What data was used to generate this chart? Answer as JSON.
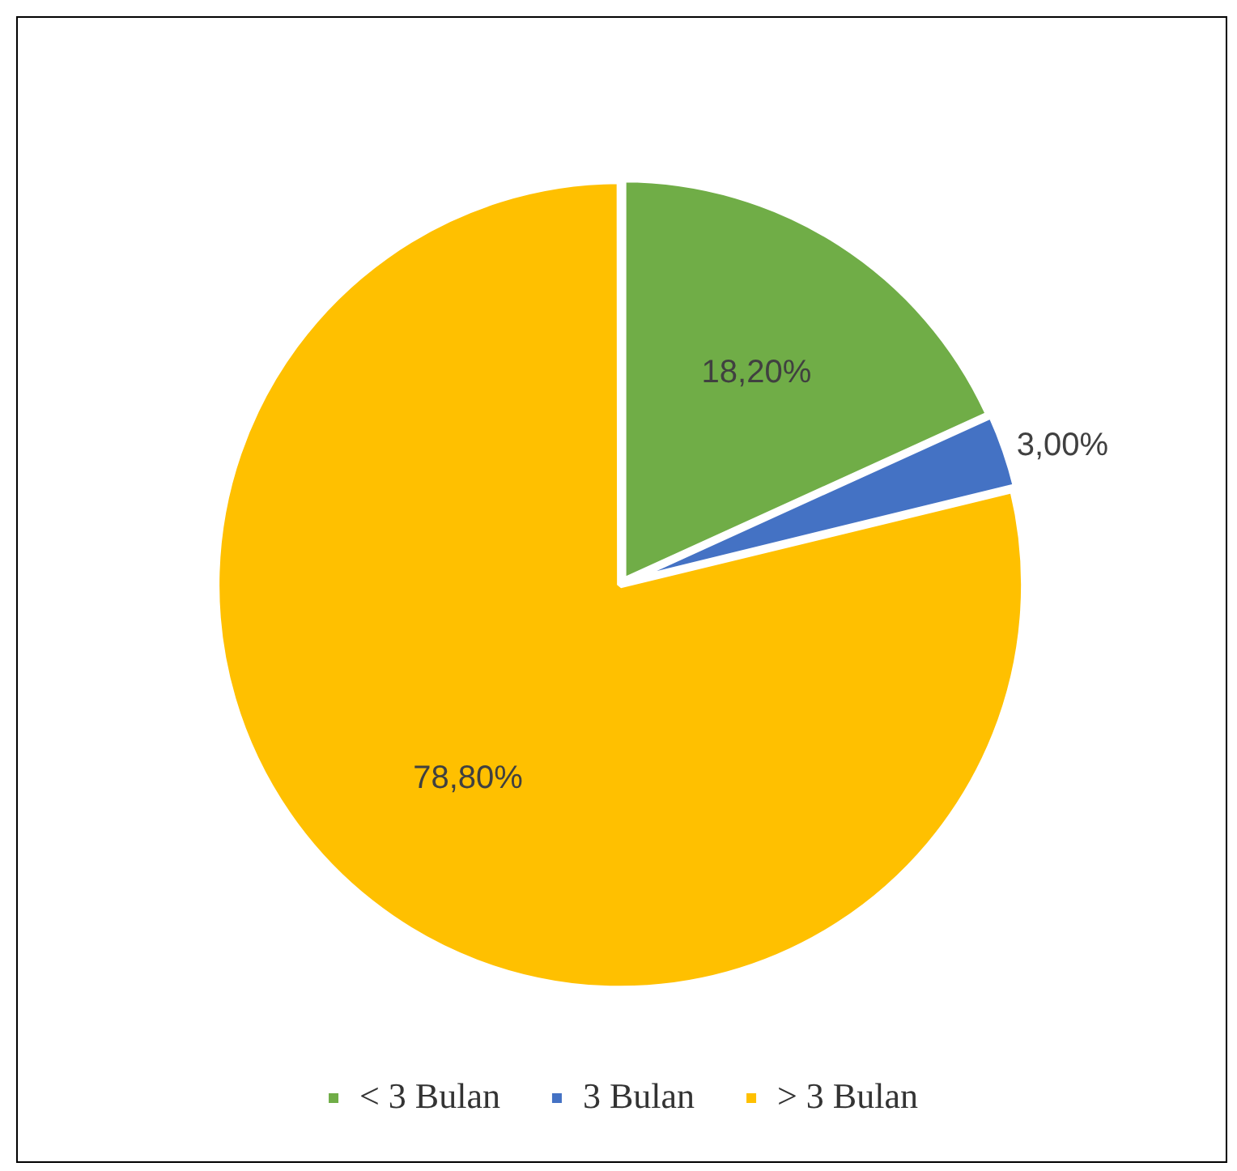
{
  "chart_data": {
    "type": "pie",
    "categories": [
      "< 3 Bulan",
      "3 Bulan",
      "> 3 Bulan"
    ],
    "values": [
      18.2,
      3.0,
      78.8
    ],
    "colors": [
      "#70ad47",
      "#4472c4",
      "#ffc000"
    ],
    "value_labels": [
      "18,20%",
      "3,00%",
      "78,80%"
    ],
    "legend": "bottom"
  }
}
